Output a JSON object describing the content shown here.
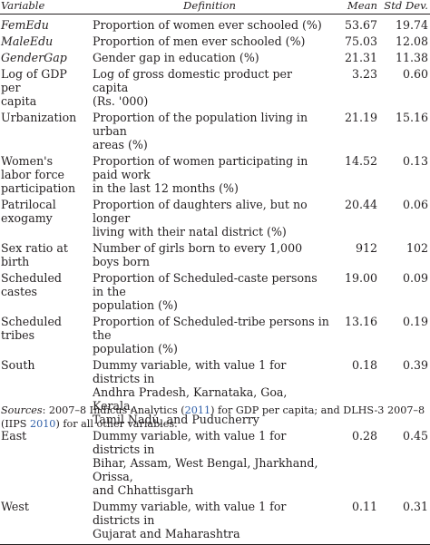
{
  "header": {
    "variable": "Variable",
    "definition": "Definition",
    "mean": "Mean",
    "sd": "Std Dev."
  },
  "rows": [
    {
      "variable": [
        "FemEdu"
      ],
      "italic": true,
      "definition": [
        "Proportion of women ever schooled (%)"
      ],
      "mean": "53.67",
      "sd": "19.74"
    },
    {
      "variable": [
        "MaleEdu"
      ],
      "italic": true,
      "definition": [
        "Proportion of men ever schooled (%)"
      ],
      "mean": "75.03",
      "sd": "12.08"
    },
    {
      "variable": [
        "GenderGap"
      ],
      "italic": true,
      "definition": [
        "Gender gap in education (%)"
      ],
      "mean": "21.31",
      "sd": "11.38"
    },
    {
      "variable": [
        "Log of GDP per",
        "capita"
      ],
      "italic": false,
      "definition": [
        "Log of gross domestic product per capita",
        "(Rs. '000)"
      ],
      "mean": "3.23",
      "sd": "0.60"
    },
    {
      "variable": [
        "Urbanization"
      ],
      "italic": false,
      "definition": [
        "Proportion of the population living in urban",
        "areas (%)"
      ],
      "mean": "21.19",
      "sd": "15.16"
    },
    {
      "variable": [
        "Women's",
        "labor force",
        "participation"
      ],
      "italic": false,
      "definition": [
        "Proportion of women participating in paid work",
        "in the last 12 months (%)"
      ],
      "mean": "14.52",
      "sd": "0.13"
    },
    {
      "variable": [
        "Patrilocal",
        "exogamy"
      ],
      "italic": false,
      "definition": [
        "Proportion of daughters alive, but no longer",
        "living with their natal district (%)"
      ],
      "mean": "20.44",
      "sd": "0.06"
    },
    {
      "variable": [
        "Sex ratio at",
        "birth"
      ],
      "italic": false,
      "definition": [
        "Number of girls born to every 1,000 boys born"
      ],
      "mean": "912",
      "sd": "102"
    },
    {
      "variable": [
        "Scheduled",
        "castes"
      ],
      "italic": false,
      "definition": [
        "Proportion of Scheduled-caste persons in the",
        "population (%)"
      ],
      "mean": "19.00",
      "sd": "0.09"
    },
    {
      "variable": [
        "Scheduled",
        "tribes"
      ],
      "italic": false,
      "definition": [
        "Proportion of Scheduled-tribe persons in the",
        "population (%)"
      ],
      "mean": "13.16",
      "sd": "0.19"
    },
    {
      "variable": [
        "South"
      ],
      "italic": false,
      "definition": [
        "Dummy variable, with value 1 for districts in",
        "Andhra Pradesh, Karnataka, Goa, Kerala,",
        "Tamil Nadu, and Puducherry"
      ],
      "mean": "0.18",
      "sd": "0.39"
    },
    {
      "variable": [
        "East"
      ],
      "italic": false,
      "definition": [
        "Dummy variable, with value 1 for districts in",
        "Bihar, Assam, West Bengal, Jharkhand, Orissa,",
        "and Chhattisgarh"
      ],
      "mean": "0.28",
      "sd": "0.45"
    },
    {
      "variable": [
        "West"
      ],
      "italic": false,
      "definition": [
        "Dummy variable, with value 1 for districts in",
        "Gujarat and Maharashtra"
      ],
      "mean": "0.11",
      "sd": "0.31"
    }
  ],
  "sources": {
    "label": "Sources",
    "text1": ": 2007–8 Indicus Analytics (",
    "cite1": "2011",
    "text2": ") for GDP per capita; and DLHS-3 2007–8 (IIPS ",
    "cite2": "2010",
    "text3": ") for all other variables."
  }
}
